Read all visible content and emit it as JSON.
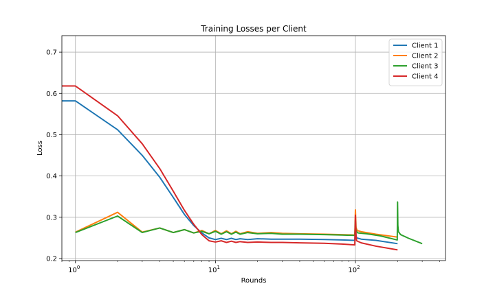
{
  "chart_data": {
    "type": "line",
    "title": "Training Losses per Client",
    "xlabel": "Rounds",
    "ylabel": "Loss",
    "xscale": "log",
    "xlim": [
      0.8,
      440
    ],
    "ylim": [
      0.195,
      0.74
    ],
    "xticks": [
      {
        "value": 1,
        "base": "10",
        "exp": "0"
      },
      {
        "value": 10,
        "base": "10",
        "exp": "1"
      },
      {
        "value": 100,
        "base": "10",
        "exp": "2"
      }
    ],
    "yticks": [
      {
        "value": 0.2,
        "label": "0.2"
      },
      {
        "value": 0.3,
        "label": "0.3"
      },
      {
        "value": 0.4,
        "label": "0.4"
      },
      {
        "value": 0.5,
        "label": "0.5"
      },
      {
        "value": 0.6,
        "label": "0.6"
      },
      {
        "value": 0.7,
        "label": "0.7"
      }
    ],
    "grid": true,
    "legend_position": "top-right",
    "series": [
      {
        "name": "Client 1",
        "color": "#1f77b4",
        "points": [
          [
            0.8,
            0.582
          ],
          [
            1,
            0.582
          ],
          [
            2,
            0.512
          ],
          [
            3,
            0.45
          ],
          [
            4,
            0.397
          ],
          [
            5,
            0.348
          ],
          [
            6,
            0.307
          ],
          [
            7,
            0.28
          ],
          [
            8,
            0.262
          ],
          [
            9,
            0.25
          ],
          [
            10,
            0.246
          ],
          [
            11,
            0.249
          ],
          [
            12,
            0.246
          ],
          [
            13,
            0.249
          ],
          [
            14,
            0.246
          ],
          [
            15,
            0.248
          ],
          [
            17,
            0.246
          ],
          [
            20,
            0.248
          ],
          [
            25,
            0.247
          ],
          [
            30,
            0.247
          ],
          [
            40,
            0.247
          ],
          [
            60,
            0.246
          ],
          [
            80,
            0.245
          ],
          [
            99,
            0.244
          ],
          [
            100,
            0.283
          ],
          [
            101,
            0.256
          ],
          [
            102,
            0.25
          ],
          [
            110,
            0.247
          ],
          [
            140,
            0.244
          ],
          [
            200,
            0.236
          ]
        ]
      },
      {
        "name": "Client 2",
        "color": "#ff7f0e",
        "points": [
          [
            1,
            0.264
          ],
          [
            2,
            0.312
          ],
          [
            3,
            0.264
          ],
          [
            4,
            0.274
          ],
          [
            5,
            0.263
          ],
          [
            6,
            0.27
          ],
          [
            7,
            0.262
          ],
          [
            8,
            0.268
          ],
          [
            9,
            0.26
          ],
          [
            10,
            0.268
          ],
          [
            11,
            0.26
          ],
          [
            12,
            0.267
          ],
          [
            13,
            0.26
          ],
          [
            14,
            0.266
          ],
          [
            15,
            0.26
          ],
          [
            17,
            0.265
          ],
          [
            20,
            0.261
          ],
          [
            25,
            0.263
          ],
          [
            30,
            0.261
          ],
          [
            40,
            0.26
          ],
          [
            60,
            0.259
          ],
          [
            80,
            0.258
          ],
          [
            99,
            0.257
          ],
          [
            100,
            0.318
          ],
          [
            101,
            0.275
          ],
          [
            103,
            0.268
          ],
          [
            110,
            0.265
          ],
          [
            140,
            0.259
          ],
          [
            200,
            0.252
          ]
        ]
      },
      {
        "name": "Client 3",
        "color": "#2ca02c",
        "points": [
          [
            1,
            0.263
          ],
          [
            2,
            0.303
          ],
          [
            3,
            0.263
          ],
          [
            4,
            0.274
          ],
          [
            5,
            0.263
          ],
          [
            6,
            0.27
          ],
          [
            7,
            0.262
          ],
          [
            8,
            0.266
          ],
          [
            9,
            0.26
          ],
          [
            10,
            0.266
          ],
          [
            11,
            0.259
          ],
          [
            12,
            0.265
          ],
          [
            13,
            0.259
          ],
          [
            14,
            0.264
          ],
          [
            15,
            0.259
          ],
          [
            17,
            0.263
          ],
          [
            20,
            0.26
          ],
          [
            25,
            0.261
          ],
          [
            30,
            0.259
          ],
          [
            40,
            0.259
          ],
          [
            60,
            0.258
          ],
          [
            80,
            0.257
          ],
          [
            99,
            0.256
          ],
          [
            100,
            0.295
          ],
          [
            101,
            0.268
          ],
          [
            104,
            0.262
          ],
          [
            120,
            0.26
          ],
          [
            150,
            0.255
          ],
          [
            199,
            0.245
          ],
          [
            200,
            0.337
          ],
          [
            201,
            0.28
          ],
          [
            203,
            0.265
          ],
          [
            210,
            0.258
          ],
          [
            240,
            0.249
          ],
          [
            300,
            0.236
          ]
        ]
      },
      {
        "name": "Client 4",
        "color": "#d62728",
        "points": [
          [
            0.8,
            0.618
          ],
          [
            1,
            0.618
          ],
          [
            2,
            0.546
          ],
          [
            3,
            0.478
          ],
          [
            4,
            0.418
          ],
          [
            5,
            0.363
          ],
          [
            6,
            0.317
          ],
          [
            7,
            0.283
          ],
          [
            8,
            0.258
          ],
          [
            9,
            0.243
          ],
          [
            10,
            0.24
          ],
          [
            11,
            0.243
          ],
          [
            12,
            0.239
          ],
          [
            13,
            0.242
          ],
          [
            14,
            0.239
          ],
          [
            15,
            0.241
          ],
          [
            17,
            0.239
          ],
          [
            20,
            0.24
          ],
          [
            25,
            0.239
          ],
          [
            30,
            0.239
          ],
          [
            40,
            0.238
          ],
          [
            60,
            0.237
          ],
          [
            80,
            0.235
          ],
          [
            99,
            0.233
          ],
          [
            100,
            0.305
          ],
          [
            101,
            0.255
          ],
          [
            102,
            0.243
          ],
          [
            110,
            0.238
          ],
          [
            140,
            0.23
          ],
          [
            200,
            0.221
          ]
        ]
      }
    ]
  }
}
